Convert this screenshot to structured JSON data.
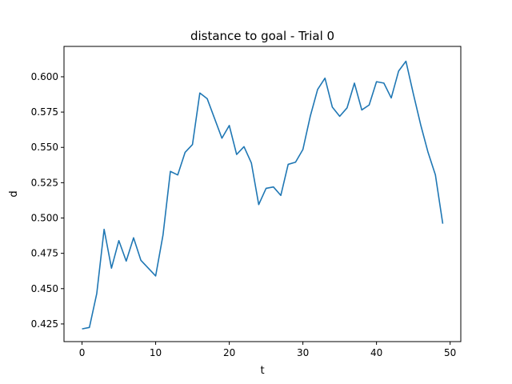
{
  "chart_data": {
    "type": "line",
    "title": "distance to goal - Trial 0",
    "xlabel": "t",
    "ylabel": "d",
    "xlim": [
      -2.45,
      51.45
    ],
    "ylim": [
      0.4125,
      0.6215
    ],
    "xticks": [
      0,
      10,
      20,
      30,
      40,
      50
    ],
    "yticks": [
      0.425,
      0.45,
      0.475,
      0.5,
      0.525,
      0.55,
      0.575,
      0.6
    ],
    "ytick_labels": [
      "0.425",
      "0.450",
      "0.475",
      "0.500",
      "0.525",
      "0.550",
      "0.575",
      "0.600"
    ],
    "grid": false,
    "legend": "none",
    "line_color": "#1f77b4",
    "series": [
      {
        "x": [
          0,
          1,
          2,
          3,
          4,
          5,
          6,
          7,
          8,
          9,
          10,
          11,
          12,
          13,
          14,
          15,
          16,
          17,
          18,
          19,
          20,
          21,
          22,
          23,
          24,
          25,
          26,
          27,
          28,
          29,
          30,
          31,
          32,
          33,
          34,
          35,
          36,
          37,
          38,
          39,
          40,
          41,
          42,
          43,
          44,
          45,
          46,
          47,
          48,
          49
        ],
        "values": [
          0.4215,
          0.4225,
          0.4465,
          0.492,
          0.4645,
          0.484,
          0.4695,
          0.486,
          0.47,
          0.4645,
          0.459,
          0.488,
          0.533,
          0.5305,
          0.5465,
          0.552,
          0.5885,
          0.5845,
          0.5705,
          0.5565,
          0.5655,
          0.545,
          0.5505,
          0.539,
          0.5095,
          0.521,
          0.522,
          0.516,
          0.538,
          0.5395,
          0.5485,
          0.572,
          0.591,
          0.599,
          0.5785,
          0.572,
          0.578,
          0.5955,
          0.5765,
          0.58,
          0.5965,
          0.5955,
          0.585,
          0.604,
          0.611,
          0.588,
          0.566,
          0.5465,
          0.5305,
          0.496
        ]
      }
    ]
  }
}
